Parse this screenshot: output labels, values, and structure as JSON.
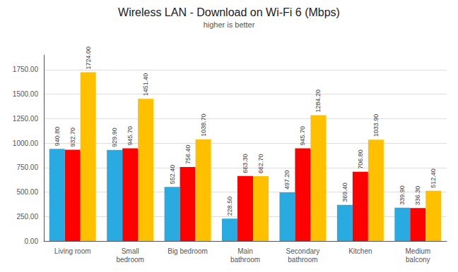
{
  "chart_data": {
    "type": "bar",
    "title": "Wireless LAN - Download on Wi-Fi 6 (Mbps)",
    "subtitle": "higher is better",
    "categories": [
      "Living room",
      "Small\nbedroom",
      "Big bedroom",
      "Main\nbathroom",
      "Secondary\nbathroom",
      "Kitchen",
      "Medium\nbalcony"
    ],
    "series": [
      {
        "color": "#29ABE2",
        "values": [
          940.8,
          929.9,
          552.4,
          228.5,
          497.2,
          369.4,
          339.9
        ],
        "value_labels": [
          "940.80",
          "929.90",
          "552.40",
          "228.50",
          "497.20",
          "369.40",
          "339.90"
        ]
      },
      {
        "color": "#FF0000",
        "values": [
          932.7,
          945.7,
          756.4,
          663.3,
          945.7,
          706.8,
          336.3
        ],
        "value_labels": [
          "932.70",
          "945.70",
          "756.40",
          "663.30",
          "945.70",
          "706.80",
          "336.30"
        ]
      },
      {
        "color": "#FFC000",
        "values": [
          1724.0,
          1451.4,
          1038.7,
          662.7,
          1284.2,
          1033.9,
          512.4
        ],
        "value_labels": [
          "1724.00",
          "1451.40",
          "1038.70",
          "662.70",
          "1284.20",
          "1033.90",
          "512.40"
        ]
      }
    ],
    "ylim": [
      0,
      1900
    ],
    "yticks": [
      {
        "value": 0,
        "label": "0.00"
      },
      {
        "value": 250,
        "label": "250.00"
      },
      {
        "value": 500,
        "label": "500.00"
      },
      {
        "value": 750,
        "label": "750.00"
      },
      {
        "value": 1000,
        "label": "1000.00"
      },
      {
        "value": 1250,
        "label": "1250.00"
      },
      {
        "value": 1500,
        "label": "1500.00"
      },
      {
        "value": 1750,
        "label": "1750.00"
      }
    ],
    "grid": true,
    "data_labels": true
  }
}
